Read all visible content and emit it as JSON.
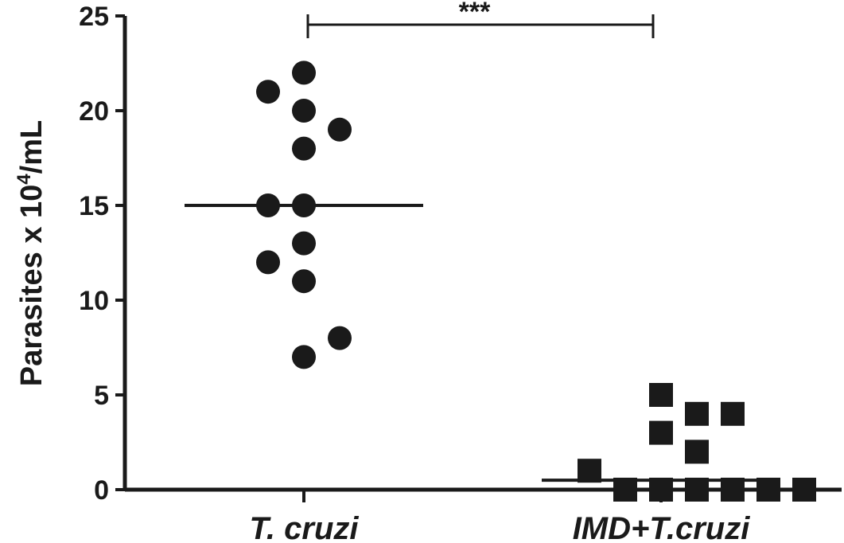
{
  "chart_data": {
    "type": "scatter",
    "ylabel": "Parasites x 10",
    "ylabel_sup": "4",
    "ylabel_unit": "/mL",
    "ylim": [
      0,
      25
    ],
    "yticks": [
      "0",
      "5",
      "10",
      "15",
      "20",
      "25"
    ],
    "categories": [
      "T. cruzi",
      "IMD+T.cruzi"
    ],
    "significance": "***",
    "colors": {
      "ink": "#1a1a1a"
    },
    "series": [
      {
        "marker": "circle",
        "median": 15,
        "points": [
          {
            "offset": 0,
            "y": 22
          },
          {
            "offset": -1,
            "y": 21
          },
          {
            "offset": 0,
            "y": 20
          },
          {
            "offset": 1,
            "y": 19
          },
          {
            "offset": 0,
            "y": 18
          },
          {
            "offset": -1,
            "y": 15
          },
          {
            "offset": 0,
            "y": 15
          },
          {
            "offset": 0,
            "y": 13
          },
          {
            "offset": -1,
            "y": 12
          },
          {
            "offset": 0,
            "y": 11
          },
          {
            "offset": 1,
            "y": 8
          },
          {
            "offset": 0,
            "y": 7
          }
        ]
      },
      {
        "marker": "square",
        "median": 0.5,
        "points": [
          {
            "offset": 0,
            "y": 5
          },
          {
            "offset": 1,
            "y": 4
          },
          {
            "offset": 2,
            "y": 4
          },
          {
            "offset": 0,
            "y": 3
          },
          {
            "offset": 1,
            "y": 2
          },
          {
            "offset": -2,
            "y": 1
          },
          {
            "offset": -1,
            "y": 0
          },
          {
            "offset": 0,
            "y": 0
          },
          {
            "offset": 1,
            "y": 0
          },
          {
            "offset": 2,
            "y": 0
          },
          {
            "offset": 3,
            "y": 0
          },
          {
            "offset": 4,
            "y": 0
          }
        ]
      }
    ]
  }
}
